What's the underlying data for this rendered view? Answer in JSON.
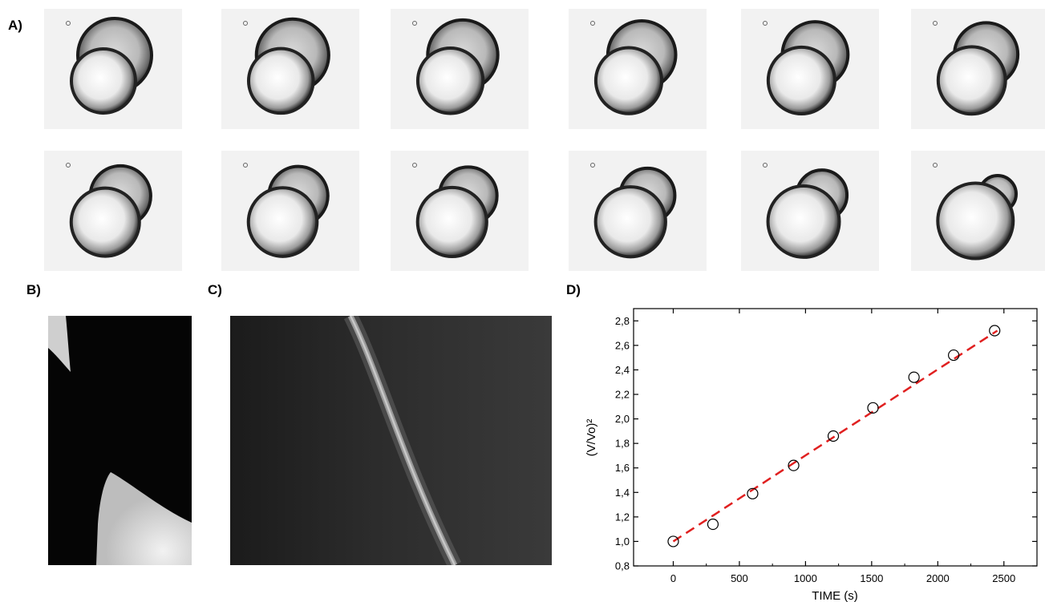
{
  "panels": {
    "a": "A)",
    "b": "B)",
    "c": "C)",
    "d": "D)"
  },
  "image_strip": {
    "frames": [
      {
        "row": 1,
        "shrink_ratio": 1.0
      },
      {
        "row": 1,
        "shrink_ratio": 0.98
      },
      {
        "row": 1,
        "shrink_ratio": 0.95
      },
      {
        "row": 1,
        "shrink_ratio": 0.92
      },
      {
        "row": 1,
        "shrink_ratio": 0.89
      },
      {
        "row": 1,
        "shrink_ratio": 0.86
      },
      {
        "row": 2,
        "shrink_ratio": 0.82
      },
      {
        "row": 2,
        "shrink_ratio": 0.8
      },
      {
        "row": 2,
        "shrink_ratio": 0.78
      },
      {
        "row": 2,
        "shrink_ratio": 0.74
      },
      {
        "row": 2,
        "shrink_ratio": 0.68
      },
      {
        "row": 2,
        "shrink_ratio": 0.5
      }
    ]
  },
  "chart_data": {
    "type": "scatter",
    "xlabel": "TIME (s)",
    "ylabel": "(V/Vo)²",
    "xlim": [
      -300,
      2750
    ],
    "ylim": [
      0.8,
      2.9
    ],
    "xticks": [
      0,
      500,
      1000,
      1500,
      2000,
      2500
    ],
    "yticks": [
      "0,8",
      "1,0",
      "1,2",
      "1,4",
      "1,6",
      "1,8",
      "2,0",
      "2,2",
      "2,4",
      "2,6",
      "2,8"
    ],
    "ytick_values": [
      0.8,
      1.0,
      1.2,
      1.4,
      1.6,
      1.8,
      2.0,
      2.2,
      2.4,
      2.6,
      2.8
    ],
    "series": [
      {
        "marker": "open-circle",
        "x": [
          0,
          300,
          600,
          910,
          1210,
          1510,
          1820,
          2120,
          2430
        ],
        "y": [
          1.0,
          1.14,
          1.39,
          1.62,
          1.86,
          2.09,
          2.34,
          2.52,
          2.72
        ]
      }
    ],
    "fit_line": {
      "style": "dashed",
      "color": "#e02020",
      "x": [
        0,
        2450
      ],
      "y": [
        1.0,
        2.72
      ]
    },
    "grid": false
  }
}
